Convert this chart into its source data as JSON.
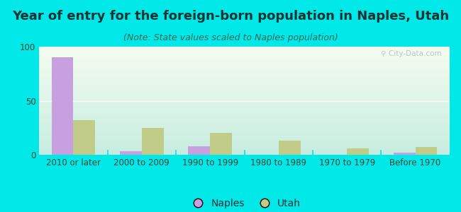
{
  "title": "Year of entry for the foreign-born population in Naples, Utah",
  "subtitle": "(Note: State values scaled to Naples population)",
  "categories": [
    "2010 or later",
    "2000 to 2009",
    "1990 to 1999",
    "1980 to 1989",
    "1970 to 1979",
    "Before 1970"
  ],
  "naples_values": [
    90,
    3,
    8,
    0,
    0,
    2
  ],
  "utah_values": [
    32,
    25,
    20,
    13,
    6,
    7
  ],
  "naples_color": "#c8a0e0",
  "utah_color": "#c0cc88",
  "bg_outer": "#00e8e8",
  "bg_plot_top_left": "#f0f8ec",
  "bg_plot_bottom_right": "#c8ede4",
  "ylim": [
    0,
    100
  ],
  "yticks": [
    0,
    50,
    100
  ],
  "bar_width": 0.32,
  "title_fontsize": 13,
  "subtitle_fontsize": 9,
  "tick_fontsize": 8.5,
  "legend_fontsize": 10
}
